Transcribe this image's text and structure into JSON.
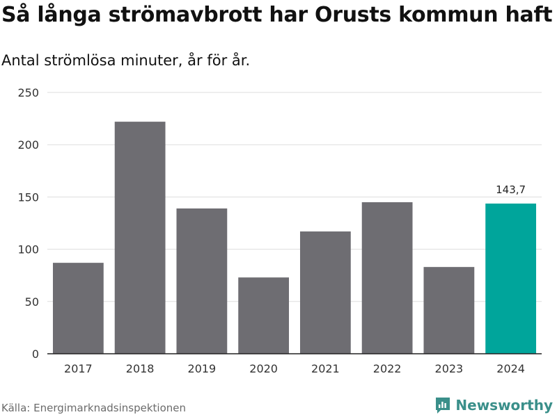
{
  "title": "Så långa strömavbrott har Orusts kommun haft",
  "subtitle": "Antal strömlösa minuter, år för år.",
  "source": "Källa: Energimarknadsinspektionen",
  "brand": {
    "name": "Newsworthy",
    "icon": "newsworthy-logo-icon"
  },
  "colors": {
    "bar": "#6e6d72",
    "highlight": "#00a59b",
    "grid": "#dddddd",
    "axis": "#222222",
    "brand": "#3a8f8a"
  },
  "chart_data": {
    "type": "bar",
    "title": "Så långa strömavbrott har Orusts kommun haft",
    "subtitle": "Antal strömlösa minuter, år för år.",
    "xlabel": "",
    "ylabel": "",
    "categories": [
      "2017",
      "2018",
      "2019",
      "2020",
      "2021",
      "2022",
      "2023",
      "2024"
    ],
    "values": [
      87,
      222,
      139,
      73,
      117,
      145,
      83,
      143.7
    ],
    "highlight_index": 7,
    "data_labels": [
      {
        "index": 7,
        "text": "143,7"
      }
    ],
    "ylim": [
      0,
      250
    ],
    "yticks": [
      0,
      50,
      100,
      150,
      200,
      250
    ],
    "grid": true,
    "legend": "none"
  }
}
